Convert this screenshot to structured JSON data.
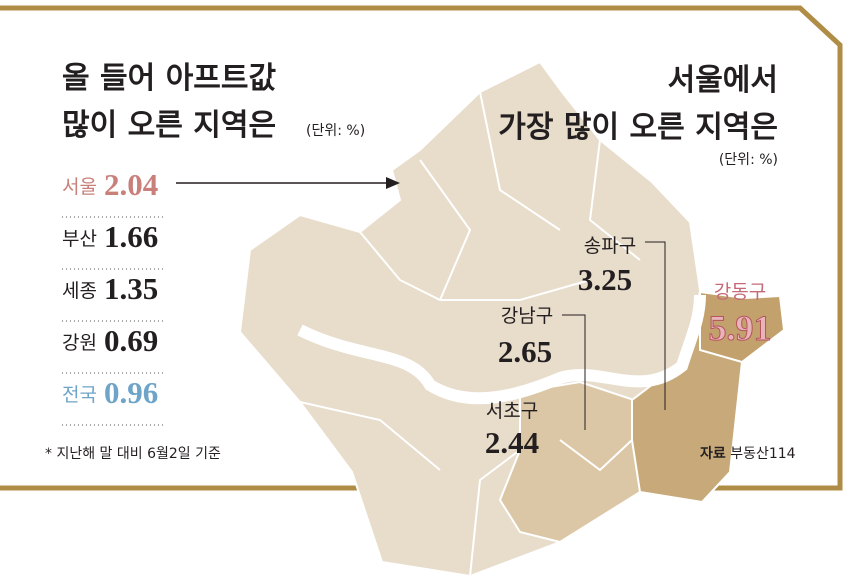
{
  "left": {
    "title": [
      "올 들어 아프트값",
      "많이 오른 지역은"
    ],
    "unit": "(단위: %)",
    "rows": [
      {
        "name": "서울",
        "value": 2.04
      },
      {
        "name": "부산",
        "value": 1.66
      },
      {
        "name": "세종",
        "value": 1.35
      },
      {
        "name": "강원",
        "value": 0.69
      },
      {
        "name": "전국",
        "value": 0.96
      }
    ],
    "note": "* 지난해 말 대비 6월2일 기준"
  },
  "right": {
    "title": [
      "서울에서",
      "가장 많이 오른 지역은"
    ],
    "unit": "(단위: %)",
    "districts": [
      {
        "name": "송파구",
        "value": 3.25
      },
      {
        "name": "강남구",
        "value": 2.65
      },
      {
        "name": "서초구",
        "value": 2.44
      },
      {
        "name": "강동구",
        "value": 5.91
      }
    ],
    "source_label": "자료",
    "source": "부동산114"
  }
}
